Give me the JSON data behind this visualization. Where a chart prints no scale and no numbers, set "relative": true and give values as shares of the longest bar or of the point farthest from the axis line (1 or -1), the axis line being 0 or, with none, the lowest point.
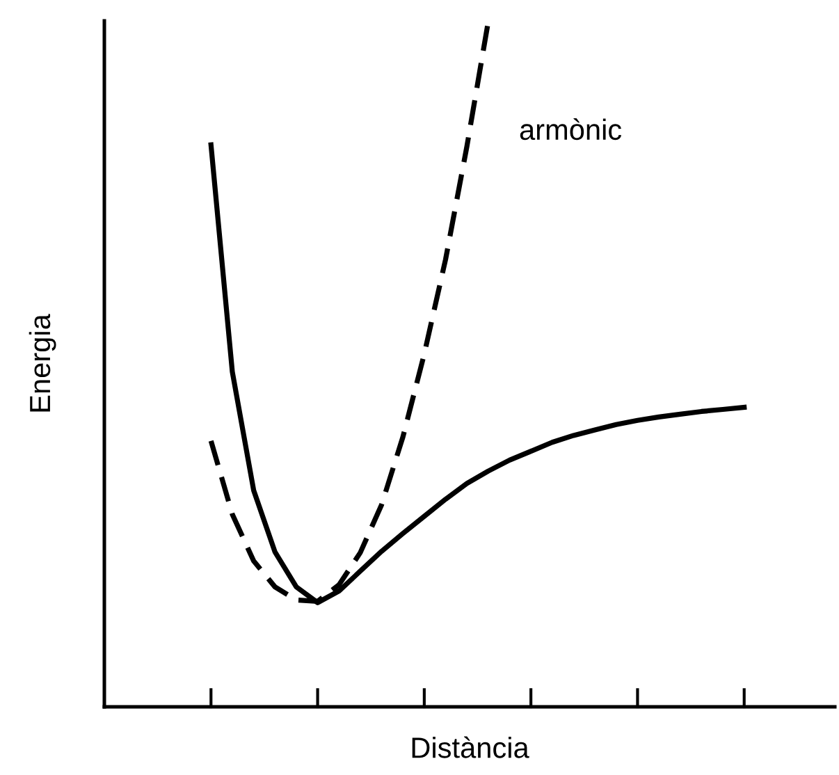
{
  "chart_data": {
    "type": "line",
    "relative": true,
    "xlabel": "Distància",
    "ylabel": "Energia",
    "categories": [
      null,
      null,
      null,
      null,
      null,
      null,
      null,
      null,
      null,
      null,
      null,
      null,
      null,
      null,
      null,
      null,
      null,
      null,
      null,
      null,
      null,
      null,
      null,
      null,
      null,
      null
    ],
    "grid": false,
    "legend": false,
    "marker": "none",
    "series": [
      {
        "color": "#000000",
        "line_style": "solid",
        "values": [
          0.82,
          0.489,
          0.316,
          0.226,
          0.175,
          0.152,
          0.169,
          0.198,
          0.227,
          0.253,
          0.278,
          0.303,
          0.326,
          0.344,
          0.36,
          0.373,
          0.386,
          0.396,
          0.404,
          0.412,
          0.418,
          0.423,
          0.427,
          0.431,
          0.434,
          0.437
        ]
      },
      {
        "color": "#000000",
        "line_style": "dashed",
        "values": [
          0.388,
          0.281,
          0.213,
          0.175,
          0.156,
          0.154,
          0.178,
          0.225,
          0.295,
          0.394,
          0.515,
          0.653,
          0.818,
          1.0,
          null,
          null,
          null,
          null,
          null,
          null,
          null,
          null,
          null,
          null,
          null,
          null
        ]
      }
    ],
    "annotations": [
      "armònic"
    ]
  }
}
